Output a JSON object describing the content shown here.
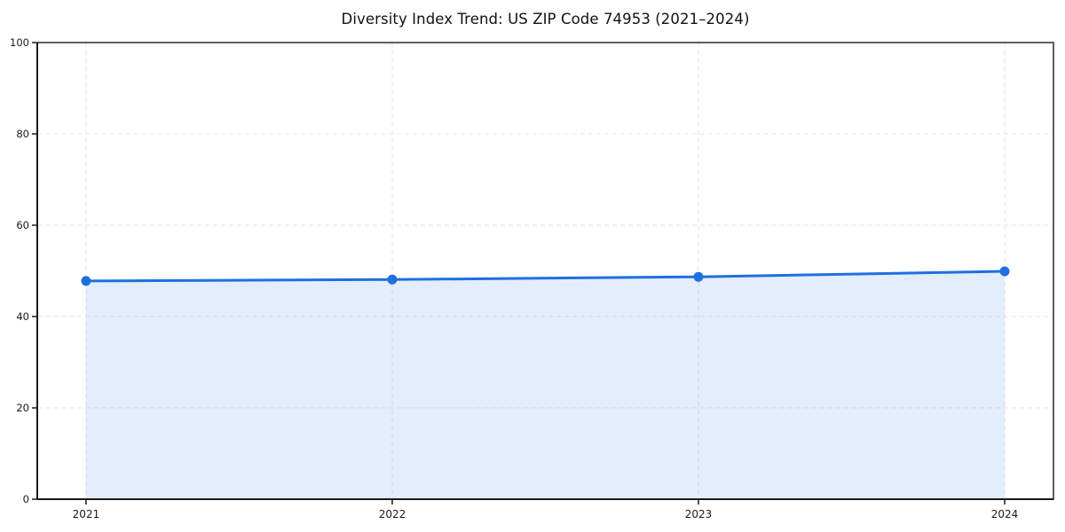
{
  "chart_data": {
    "type": "line",
    "title": "Diversity Index Trend: US ZIP Code 74953 (2021–2024)",
    "categories": [
      "2021",
      "2022",
      "2023",
      "2024"
    ],
    "series": [
      {
        "name": "Diversity Index",
        "values": [
          47.8,
          48.1,
          48.7,
          49.9
        ]
      }
    ],
    "xlabel": "",
    "ylabel": "",
    "ylim": [
      0,
      100
    ],
    "yticks": [
      0,
      20,
      40,
      60,
      80,
      100
    ],
    "grid": "dashed-both",
    "legend": "none",
    "area_fill": true,
    "colors": {
      "line": "#1f6fe0",
      "marker": "#1f6fe0",
      "area": "rgba(31,111,224,0.12)",
      "grid": "#e4e4e4",
      "spine": "#1a1a1a",
      "tick_text": "#1a1a1a",
      "background": "#ffffff"
    }
  }
}
